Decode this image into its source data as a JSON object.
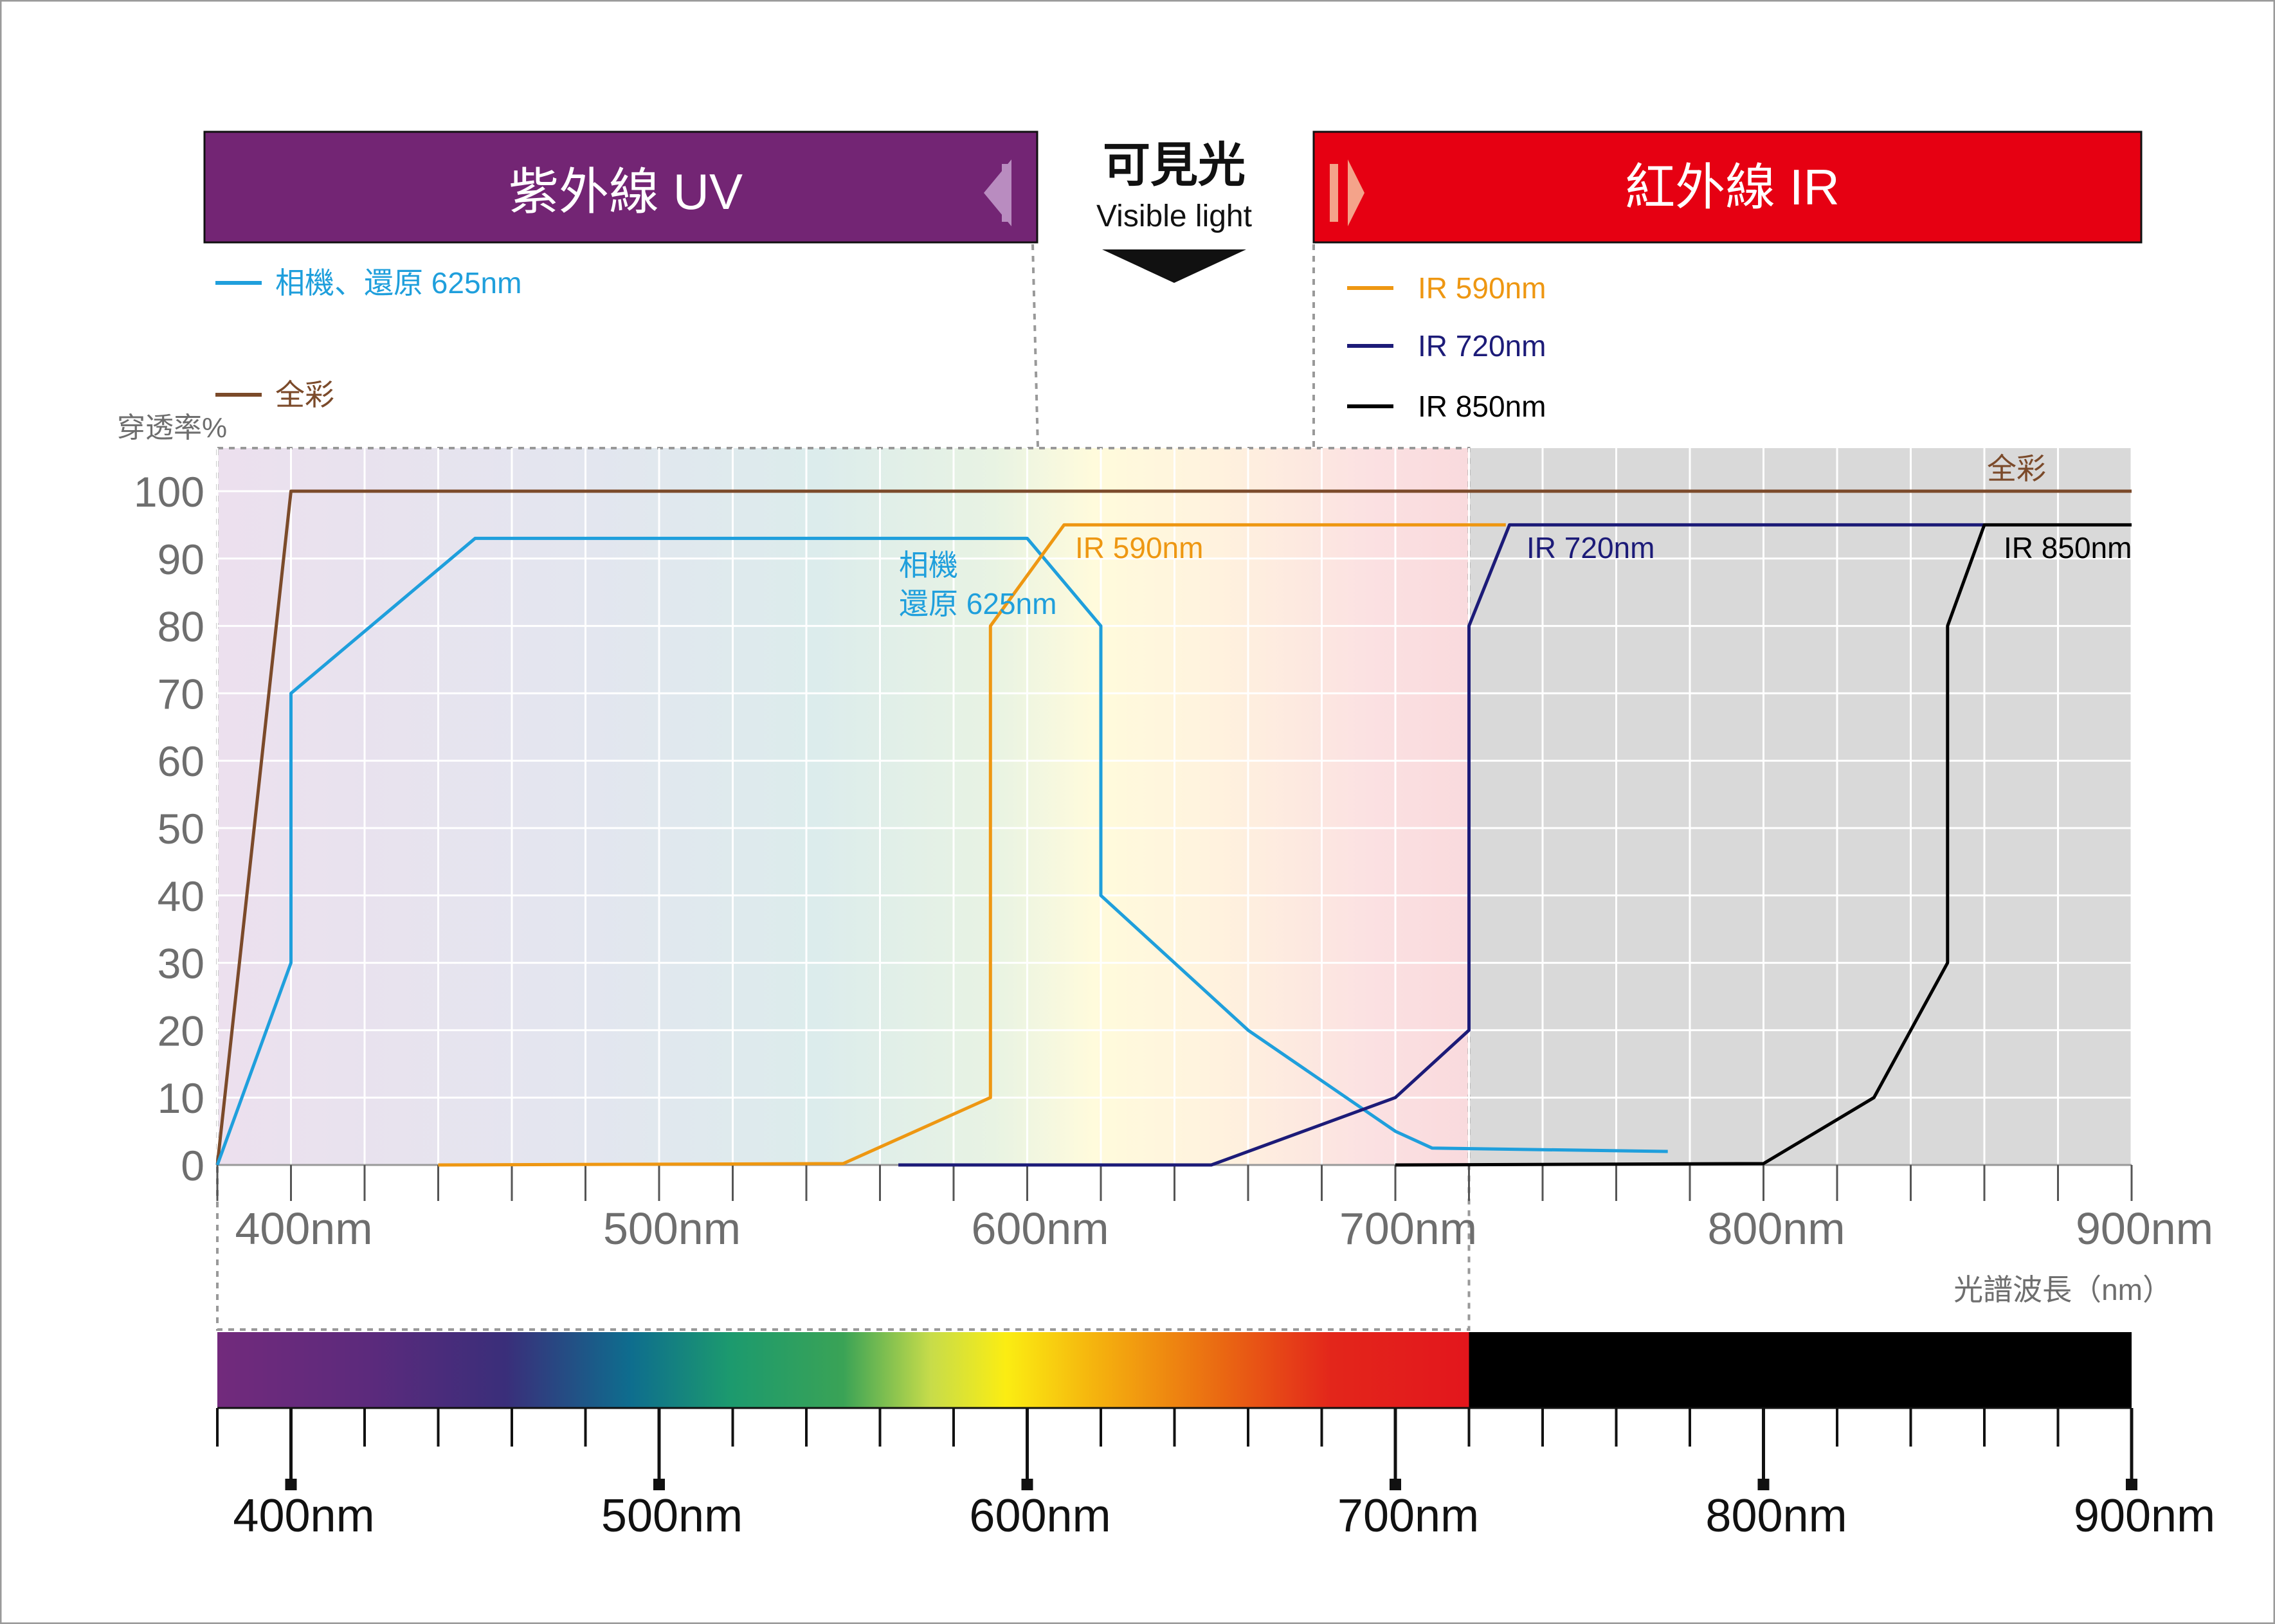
{
  "colors": {
    "uv_banner": "#732574",
    "ir_banner": "#e60012",
    "full_color": "#7b4a2a",
    "camera_restore": "#1f9fdc",
    "ir590": "#ee9712",
    "ir720": "#1c1b78",
    "ir850": "#000000",
    "axis_text": "#6e6e6e",
    "ir_region": "#d9d9d9"
  },
  "banners": {
    "uv": {
      "label": "紫外線 UV"
    },
    "visible": {
      "title": "可見光",
      "subtitle": "Visible light"
    },
    "ir": {
      "label": "紅外線 IR"
    }
  },
  "legend": [
    {
      "key": "camera_restore",
      "label": "相機、還原 625nm",
      "side": "left"
    },
    {
      "key": "full_color",
      "label": "全彩",
      "side": "left"
    },
    {
      "key": "ir590",
      "label": "IR 590nm",
      "side": "right"
    },
    {
      "key": "ir720",
      "label": "IR 720nm",
      "side": "right"
    },
    {
      "key": "ir850",
      "label": "IR 850nm",
      "side": "right"
    }
  ],
  "chart_data": {
    "type": "line",
    "ylabel": "穿透率%",
    "xlabel": "光譜波長（nm）",
    "xlim": [
      380,
      900
    ],
    "ylim": [
      0,
      100
    ],
    "yticks": [
      0,
      10,
      20,
      30,
      40,
      50,
      60,
      70,
      80,
      90,
      100
    ],
    "xticks": [
      400,
      500,
      600,
      700,
      800,
      900
    ],
    "xtick_labels": [
      "400nm",
      "500nm",
      "600nm",
      "700nm",
      "800nm",
      "900nm"
    ],
    "grid": true,
    "visible_range_nm": [
      380,
      720
    ],
    "series": [
      {
        "key": "full_color",
        "name": "全彩",
        "label": "全彩",
        "points": [
          [
            380,
            0
          ],
          [
            400,
            100
          ],
          [
            900,
            100
          ]
        ]
      },
      {
        "key": "camera_restore",
        "name": "相機、還原 625nm",
        "label_lines": [
          "相機",
          "還原 625nm"
        ],
        "points": [
          [
            380,
            0
          ],
          [
            400,
            30
          ],
          [
            400,
            70
          ],
          [
            450,
            93
          ],
          [
            600,
            93
          ],
          [
            620,
            80
          ],
          [
            620,
            40
          ],
          [
            660,
            20
          ],
          [
            700,
            5
          ],
          [
            710,
            2.5
          ],
          [
            774,
            2
          ]
        ]
      },
      {
        "key": "ir590",
        "name": "IR 590nm",
        "label": "IR 590nm",
        "points": [
          [
            440,
            0
          ],
          [
            550,
            0.2
          ],
          [
            590,
            10
          ],
          [
            590,
            80
          ],
          [
            610,
            95
          ],
          [
            730,
            95
          ]
        ]
      },
      {
        "key": "ir720",
        "name": "IR 720nm",
        "label": "IR 720nm",
        "points": [
          [
            565,
            0
          ],
          [
            650,
            0
          ],
          [
            700,
            10
          ],
          [
            720,
            20
          ],
          [
            720,
            80
          ],
          [
            731,
            95
          ],
          [
            860,
            95
          ]
        ]
      },
      {
        "key": "ir850",
        "name": "IR 850nm",
        "label": "IR 850nm",
        "points": [
          [
            700,
            0
          ],
          [
            800,
            0.2
          ],
          [
            830,
            10
          ],
          [
            850,
            30
          ],
          [
            850,
            80
          ],
          [
            860,
            95
          ],
          [
            900,
            95
          ]
        ]
      }
    ]
  }
}
